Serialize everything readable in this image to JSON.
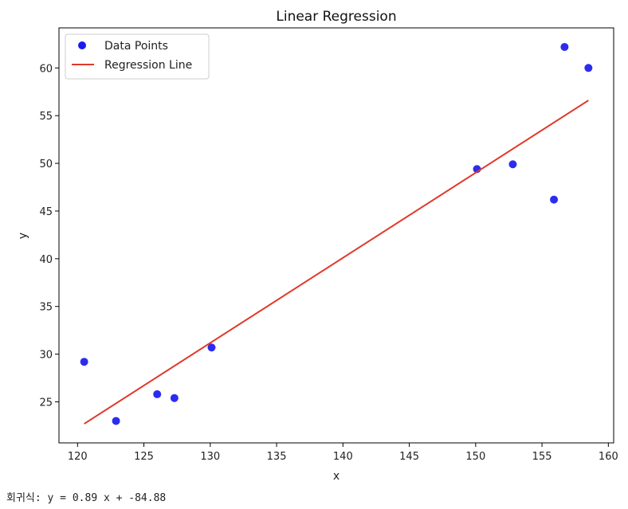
{
  "chart_data": {
    "type": "scatter",
    "title": "Linear Regression",
    "xlabel": "x",
    "ylabel": "y",
    "xlim": [
      118.6,
      160.4
    ],
    "ylim": [
      20.7,
      64.2
    ],
    "xticks": [
      120,
      125,
      130,
      135,
      140,
      145,
      150,
      155,
      160
    ],
    "yticks": [
      25,
      30,
      35,
      40,
      45,
      50,
      55,
      60
    ],
    "grid": false,
    "legend_position": "top-left",
    "series": [
      {
        "name": "Data Points",
        "kind": "scatter",
        "color": "#1a1aee",
        "points": [
          {
            "x": 120.5,
            "y": 29.2
          },
          {
            "x": 122.9,
            "y": 23.0
          },
          {
            "x": 126.0,
            "y": 25.8
          },
          {
            "x": 127.3,
            "y": 25.4
          },
          {
            "x": 130.1,
            "y": 30.7
          },
          {
            "x": 150.1,
            "y": 49.4
          },
          {
            "x": 152.8,
            "y": 49.9
          },
          {
            "x": 155.9,
            "y": 46.2
          },
          {
            "x": 156.7,
            "y": 62.2
          },
          {
            "x": 158.5,
            "y": 60.0
          }
        ]
      },
      {
        "name": "Regression Line",
        "kind": "line",
        "color": "#e0392b",
        "points": [
          {
            "x": 120.5,
            "y": 22.7
          },
          {
            "x": 158.5,
            "y": 56.6
          }
        ]
      }
    ]
  },
  "footer": {
    "equation": "회귀식: y = 0.89 x + -84.88"
  }
}
